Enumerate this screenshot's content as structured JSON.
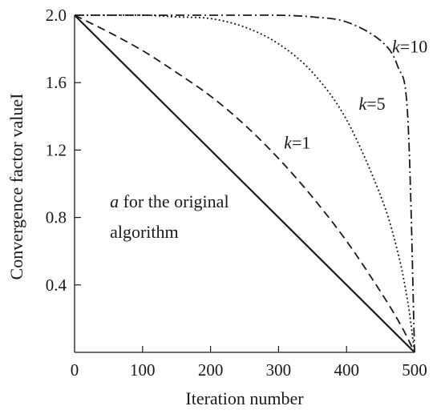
{
  "chart_data": {
    "type": "line",
    "title": "",
    "xlabel": "Iteration number",
    "ylabel": "Convergence factor valueI",
    "xlim": [
      0,
      500
    ],
    "ylim": [
      0,
      2.0
    ],
    "xticks": [
      0,
      100,
      200,
      300,
      400,
      500
    ],
    "yticks": [
      0.4,
      0.8,
      1.2,
      1.6,
      2.0
    ],
    "xtick_labels": [
      "0",
      "100",
      "200",
      "300",
      "400",
      "500"
    ],
    "ytick_labels": [
      "0.4",
      "0.8",
      "1.2",
      "1.6",
      "2.0"
    ],
    "grid": false,
    "series": [
      {
        "line_style": "solid",
        "x": [
          0,
          500
        ],
        "y": [
          2.0,
          0.0
        ]
      },
      {
        "line_style": "dashed",
        "x": [
          0,
          50,
          100,
          150,
          200,
          250,
          300,
          350,
          400,
          450,
          480,
          500
        ],
        "y": [
          2.0,
          1.9,
          1.79,
          1.66,
          1.52,
          1.35,
          1.15,
          0.92,
          0.66,
          0.36,
          0.16,
          0.0
        ]
      },
      {
        "line_style": "dotted",
        "x": [
          0,
          100,
          150,
          200,
          250,
          300,
          350,
          400,
          450,
          475,
          490,
          500
        ],
        "y": [
          2.0,
          2.0,
          1.99,
          1.98,
          1.93,
          1.83,
          1.66,
          1.38,
          0.93,
          0.6,
          0.3,
          0.0
        ]
      },
      {
        "line_style": "dash-dot",
        "x": [
          0,
          250,
          300,
          350,
          400,
          450,
          475,
          490,
          500
        ],
        "y": [
          2.0,
          2.0,
          2.0,
          1.99,
          1.96,
          1.85,
          1.7,
          1.4,
          0.0
        ]
      }
    ],
    "annotations": [
      {
        "italic": "k",
        "text": "=10",
        "x": 467,
        "y": 1.78
      },
      {
        "italic": "k",
        "text": "=5",
        "x": 418,
        "y": 1.44
      },
      {
        "italic": "k",
        "text": "=1",
        "x": 308,
        "y": 1.21
      },
      {
        "italic": "a",
        "text": " for the original",
        "x": 52,
        "y": 0.86
      },
      {
        "italic": "",
        "text": "algorithm",
        "x": 52,
        "y": 0.68
      }
    ]
  }
}
